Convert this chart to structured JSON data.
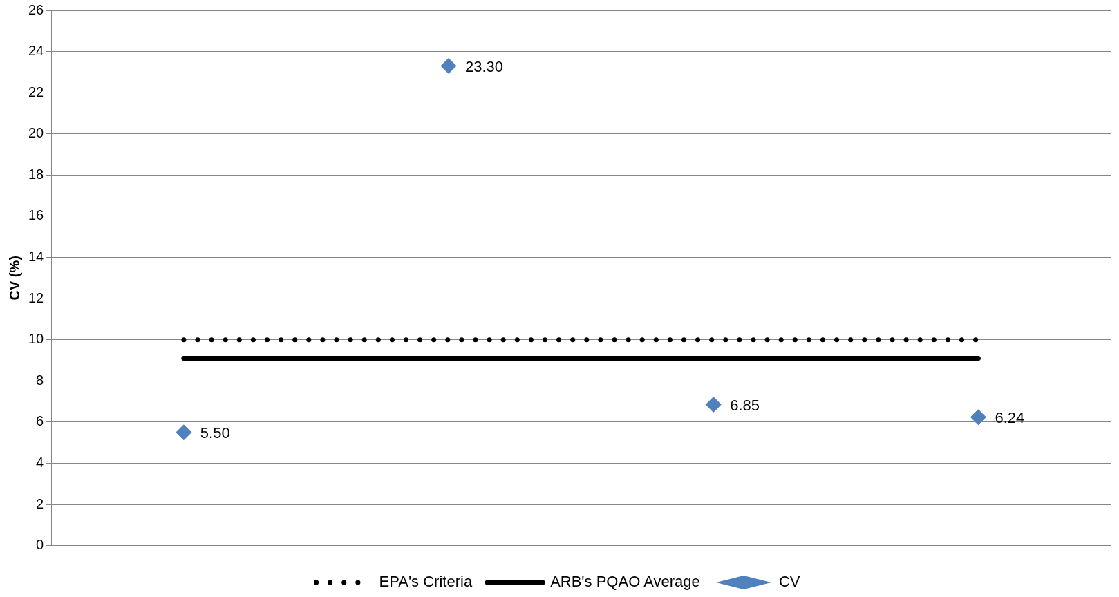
{
  "chart_data": {
    "type": "scatter",
    "ylabel": "CV (%)",
    "categories": [
      null,
      null,
      null,
      null
    ],
    "ylim": [
      0,
      26
    ],
    "yticks": [
      0,
      2,
      4,
      6,
      8,
      10,
      12,
      14,
      16,
      18,
      20,
      22,
      24,
      26
    ],
    "grid": "y",
    "legend": "bottom",
    "series": [
      {
        "name": "EPA's Criteria",
        "type": "line",
        "color": "#000000",
        "line_style": "dotted",
        "marker": "none",
        "values": [
          10,
          10,
          10,
          10
        ]
      },
      {
        "name": "ARB's PQAO Average",
        "type": "line",
        "color": "#000000",
        "line_style": "solid",
        "marker": "none",
        "values": [
          9.1,
          9.1,
          9.1,
          9.1
        ]
      },
      {
        "name": "CV",
        "color": "#4f81bd",
        "marker": "diamond",
        "values": [
          5.5,
          23.3,
          6.85,
          6.24
        ],
        "value_labels": [
          "5.50",
          "23.30",
          "6.85",
          "6.24"
        ]
      }
    ]
  }
}
